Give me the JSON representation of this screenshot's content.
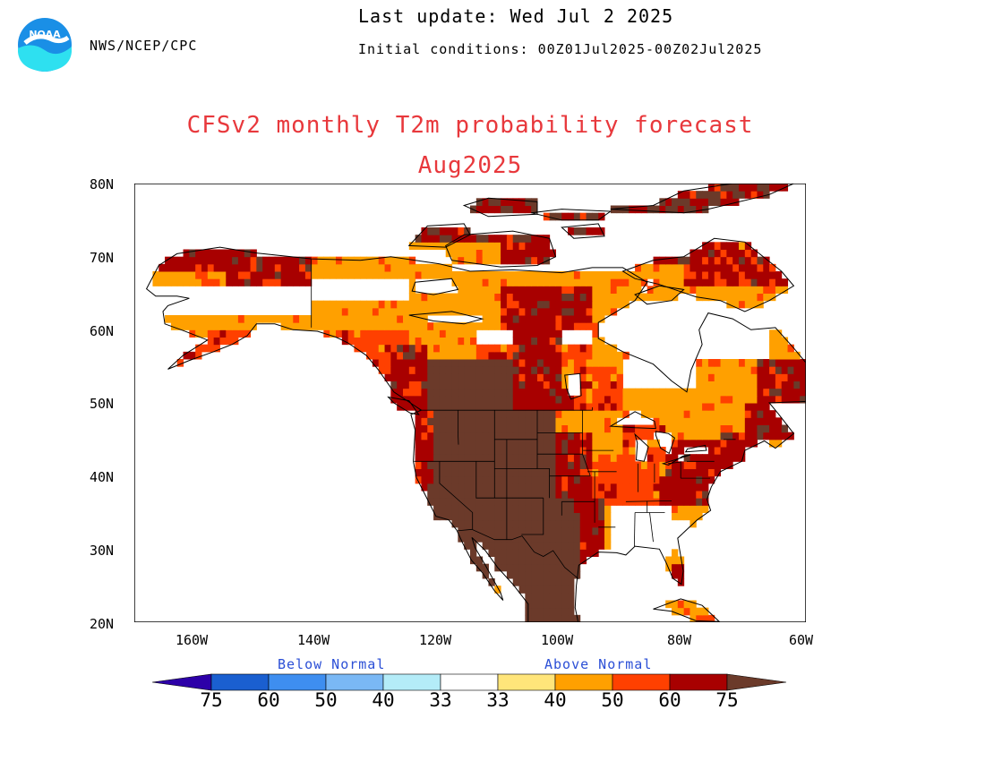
{
  "header": {
    "agency": "NWS/NCEP/CPC",
    "last_update": "Last update: Wed Jul 2 2025",
    "initial_conditions": "Initial conditions: 00Z01Jul2025-00Z02Jul2025"
  },
  "logo": {
    "text": "NOAA",
    "color": "#1d8fe0"
  },
  "title": {
    "line1": "CFSv2 monthly T2m probability forecast",
    "line2": "Aug2025"
  },
  "axes": {
    "lat_labels": [
      "80N",
      "70N",
      "60N",
      "50N",
      "40N",
      "30N",
      "20N"
    ],
    "lon_labels": [
      "160W",
      "140W",
      "120W",
      "100W",
      "80W",
      "60W"
    ]
  },
  "colorbar": {
    "below_label": "Below Normal",
    "above_label": "Above Normal",
    "labels": [
      "75",
      "60",
      "50",
      "40",
      "33",
      "33",
      "40",
      "50",
      "60",
      "75"
    ],
    "colors": [
      "#2d00a8",
      "#1a5fd0",
      "#3e8ef0",
      "#7ab8f5",
      "#b4ecf8",
      "#ffffff",
      "#ffe57a",
      "#ffa000",
      "#ff4000",
      "#a80000",
      "#6b3a2a"
    ]
  },
  "map": {
    "region": "North America",
    "lat_range": [
      20,
      80
    ],
    "lon_range": [
      -170,
      -60
    ]
  }
}
